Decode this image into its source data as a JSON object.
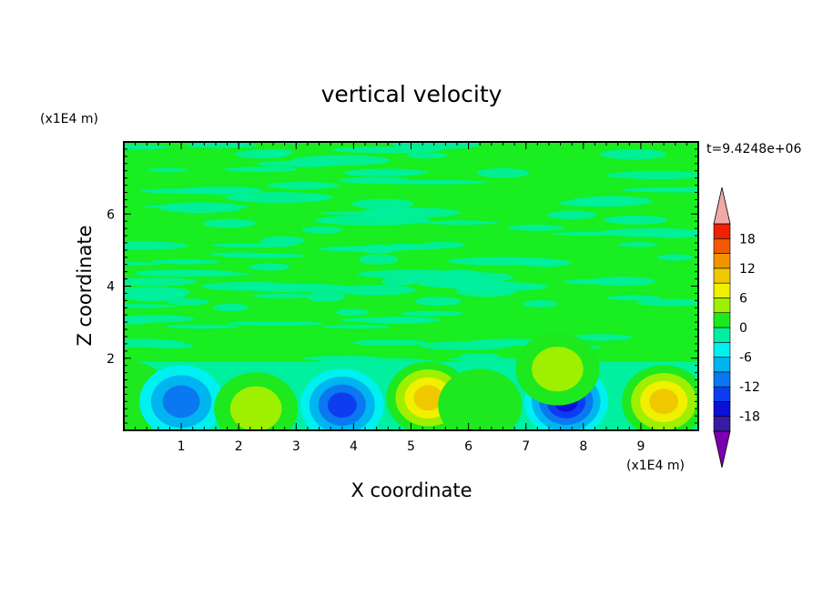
{
  "chart_data": {
    "type": "heatmap",
    "title": "vertical velocity",
    "xlabel": "X coordinate",
    "ylabel": "Z coordinate",
    "x_unit": "(x1E4 m)",
    "y_unit": "(x1E4 m)",
    "time_label": "t=9.4248e+06",
    "xlim": [
      0,
      10
    ],
    "ylim": [
      0,
      8
    ],
    "x_ticks": [
      "1",
      "2",
      "3",
      "4",
      "5",
      "6",
      "7",
      "8",
      "9"
    ],
    "y_ticks": [
      "2",
      "4",
      "6"
    ],
    "colorbar_ticks": [
      "18",
      "12",
      "6",
      "0",
      "-6",
      "-12",
      "-18"
    ],
    "colorbar_levels": [
      -21,
      -18,
      -15,
      -12,
      -9,
      -6,
      -3,
      0,
      3,
      6,
      9,
      12,
      15,
      18,
      21
    ],
    "colorbar_colors": [
      "#7a00b0",
      "#3a1aa0",
      "#0a10d8",
      "#0c3ef0",
      "#0a78f0",
      "#00b4f0",
      "#00f0f0",
      "#00f0a0",
      "#1ee81e",
      "#9ef000",
      "#f0f000",
      "#f0c800",
      "#f09400",
      "#f05a00",
      "#f02000",
      "#f0a8a8"
    ],
    "background_color": "#18ee20",
    "cells": [
      {
        "x": 0.1,
        "z": 0.9,
        "w": 0.9
      },
      {
        "x": 1.0,
        "z": 0.8,
        "w": -10
      },
      {
        "x": 2.3,
        "z": 0.6,
        "w": 8
      },
      {
        "x": 3.8,
        "z": 0.7,
        "w": -14
      },
      {
        "x": 5.3,
        "z": 0.9,
        "w": 12
      },
      {
        "x": 6.2,
        "z": 0.7,
        "w": 5
      },
      {
        "x": 7.7,
        "z": 0.8,
        "w": -15
      },
      {
        "x": 7.55,
        "z": 1.7,
        "w": 6
      },
      {
        "x": 9.4,
        "z": 0.8,
        "w": 12
      }
    ]
  }
}
